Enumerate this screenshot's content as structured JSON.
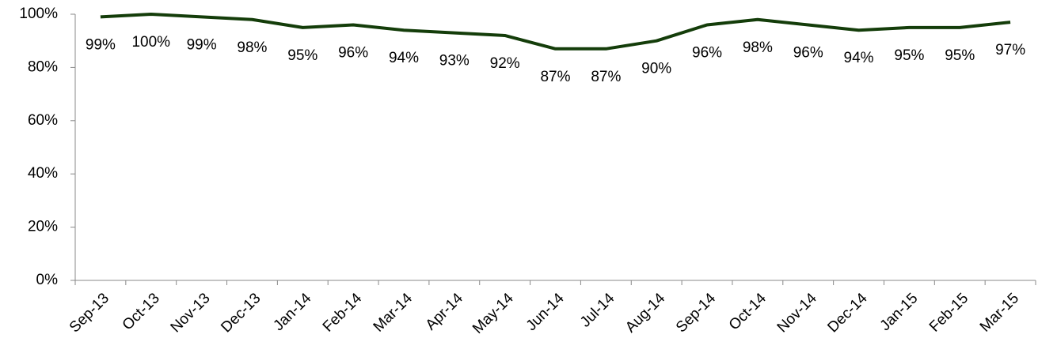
{
  "chart_data": {
    "type": "line",
    "categories": [
      "Sep-13",
      "Oct-13",
      "Nov-13",
      "Dec-13",
      "Jan-14",
      "Feb-14",
      "Mar-14",
      "Apr-14",
      "May-14",
      "Jun-14",
      "Jul-14",
      "Aug-14",
      "Sep-14",
      "Oct-14",
      "Nov-14",
      "Dec-14",
      "Jan-15",
      "Feb-15",
      "Mar-15"
    ],
    "series": [
      {
        "color": "#143d0a",
        "values": [
          99,
          100,
          99,
          98,
          95,
          96,
          94,
          93,
          92,
          87,
          87,
          90,
          96,
          98,
          96,
          94,
          95,
          95,
          97
        ],
        "value_labels": [
          "99%",
          "100%",
          "99%",
          "98%",
          "95%",
          "96%",
          "94%",
          "93%",
          "92%",
          "87%",
          "87%",
          "90%",
          "96%",
          "98%",
          "96%",
          "94%",
          "95%",
          "95%",
          "97%"
        ]
      }
    ],
    "ylim": [
      0,
      100
    ],
    "yticks": [
      {
        "value": 0,
        "label": "0%"
      },
      {
        "value": 20,
        "label": "20%"
      },
      {
        "value": 40,
        "label": "40%"
      },
      {
        "value": 60,
        "label": "60%"
      },
      {
        "value": 80,
        "label": "80%"
      },
      {
        "value": 100,
        "label": "100%"
      }
    ]
  }
}
